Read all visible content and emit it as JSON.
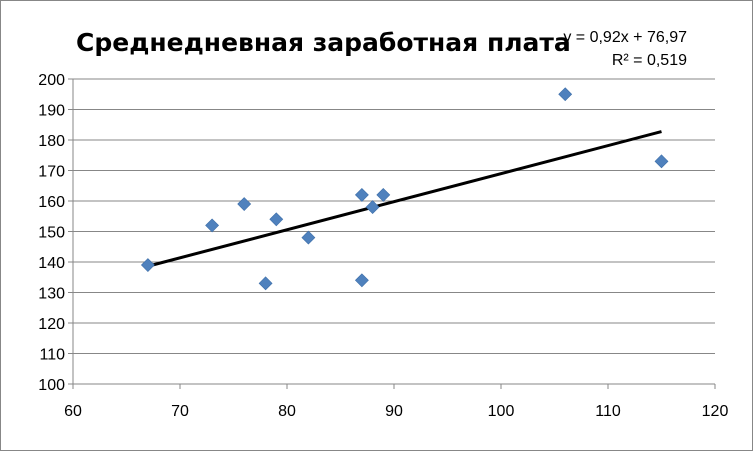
{
  "chart_data": {
    "type": "scatter",
    "title": "Среднедневная заработная плата",
    "xlabel": "",
    "ylabel": "",
    "xlim": [
      60,
      120
    ],
    "ylim": [
      100,
      200
    ],
    "x_ticks": [
      60,
      70,
      80,
      90,
      100,
      110,
      120
    ],
    "y_ticks": [
      100,
      110,
      120,
      130,
      140,
      150,
      160,
      170,
      180,
      190,
      200
    ],
    "grid": "horizontal",
    "legend": "none",
    "series": [
      {
        "marker": "diamond",
        "color": "#4F81BD",
        "points": [
          {
            "x": 67,
            "y": 139
          },
          {
            "x": 73,
            "y": 152
          },
          {
            "x": 76,
            "y": 159
          },
          {
            "x": 78,
            "y": 133
          },
          {
            "x": 79,
            "y": 154
          },
          {
            "x": 82,
            "y": 148
          },
          {
            "x": 87,
            "y": 162
          },
          {
            "x": 87,
            "y": 134
          },
          {
            "x": 88,
            "y": 158
          },
          {
            "x": 89,
            "y": 162
          },
          {
            "x": 106,
            "y": 195
          },
          {
            "x": 115,
            "y": 173
          }
        ]
      }
    ],
    "trendline": {
      "type": "linear",
      "slope": 0.92,
      "intercept": 76.97,
      "x_range": [
        67,
        115
      ],
      "color": "#000000",
      "equation": "y = 0,92x + 76,97",
      "r_squared": "R² = 0,519"
    }
  }
}
